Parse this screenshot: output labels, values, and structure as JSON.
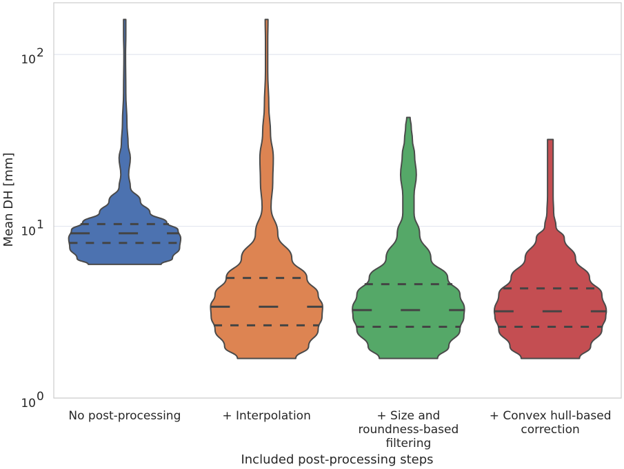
{
  "chart_data": {
    "type": "violin",
    "title": "",
    "xlabel": "Included post-processing steps",
    "ylabel": "Mean DH [mm]",
    "yscale": "log",
    "ylim": [
      1,
      200
    ],
    "yticks": [
      {
        "value": 1,
        "base": "10",
        "exp": "0"
      },
      {
        "value": 10,
        "base": "10",
        "exp": "1"
      },
      {
        "value": 100,
        "base": "10",
        "exp": "2"
      }
    ],
    "grid": true,
    "categories": [
      [
        "No post-processing"
      ],
      [
        "+ Interpolation"
      ],
      [
        "+ Size and",
        "roundness-based",
        "filtering"
      ],
      [
        "+ Convex hull-based",
        "correction"
      ]
    ],
    "series": [
      {
        "color": "#4c72b0",
        "min": 6.0,
        "max": 160,
        "q1": 8.0,
        "median": 9.1,
        "q3": 10.3,
        "density": [
          [
            6.0,
            0.65
          ],
          [
            6.5,
            0.85
          ],
          [
            7.5,
            0.98
          ],
          [
            8.5,
            1.0
          ],
          [
            9.5,
            0.95
          ],
          [
            10.5,
            0.75
          ],
          [
            12,
            0.45
          ],
          [
            14,
            0.28
          ],
          [
            17,
            0.1
          ],
          [
            20,
            0.07
          ],
          [
            25,
            0.1
          ],
          [
            30,
            0.06
          ],
          [
            40,
            0.04
          ],
          [
            60,
            0.02
          ],
          [
            100,
            0.015
          ],
          [
            130,
            0.02
          ],
          [
            160,
            0.02
          ]
        ]
      },
      {
        "color": "#dd8452",
        "min": 1.7,
        "max": 160,
        "q1": 2.65,
        "median": 3.4,
        "q3": 5.0,
        "density": [
          [
            1.7,
            0.52
          ],
          [
            2.0,
            0.75
          ],
          [
            2.5,
            0.92
          ],
          [
            3.0,
            0.99
          ],
          [
            3.4,
            1.0
          ],
          [
            4.0,
            0.92
          ],
          [
            5.0,
            0.72
          ],
          [
            6.5,
            0.45
          ],
          [
            9,
            0.2
          ],
          [
            13,
            0.08
          ],
          [
            18,
            0.11
          ],
          [
            25,
            0.12
          ],
          [
            35,
            0.07
          ],
          [
            50,
            0.04
          ],
          [
            80,
            0.02
          ],
          [
            120,
            0.02
          ],
          [
            160,
            0.025
          ]
        ]
      },
      {
        "color": "#55a868",
        "min": 1.7,
        "max": 43,
        "q1": 2.6,
        "median": 3.25,
        "q3": 4.6,
        "density": [
          [
            1.7,
            0.52
          ],
          [
            2.0,
            0.72
          ],
          [
            2.5,
            0.92
          ],
          [
            3.0,
            0.99
          ],
          [
            3.3,
            1.0
          ],
          [
            4.0,
            0.92
          ],
          [
            5.0,
            0.7
          ],
          [
            6.5,
            0.4
          ],
          [
            9,
            0.2
          ],
          [
            12,
            0.1
          ],
          [
            15,
            0.1
          ],
          [
            20,
            0.14
          ],
          [
            26,
            0.11
          ],
          [
            32,
            0.07
          ],
          [
            38,
            0.05
          ],
          [
            43,
            0.03
          ]
        ]
      },
      {
        "color": "#c44e52",
        "min": 1.7,
        "max": 32,
        "q1": 2.6,
        "median": 3.2,
        "q3": 4.35,
        "density": [
          [
            1.7,
            0.52
          ],
          [
            2.0,
            0.72
          ],
          [
            2.5,
            0.92
          ],
          [
            3.0,
            0.99
          ],
          [
            3.2,
            1.0
          ],
          [
            4.0,
            0.92
          ],
          [
            5.0,
            0.7
          ],
          [
            6.5,
            0.45
          ],
          [
            8.5,
            0.25
          ],
          [
            10,
            0.1
          ],
          [
            12,
            0.06
          ],
          [
            15,
            0.05
          ],
          [
            20,
            0.05
          ],
          [
            26,
            0.05
          ],
          [
            32,
            0.05
          ]
        ]
      }
    ]
  }
}
